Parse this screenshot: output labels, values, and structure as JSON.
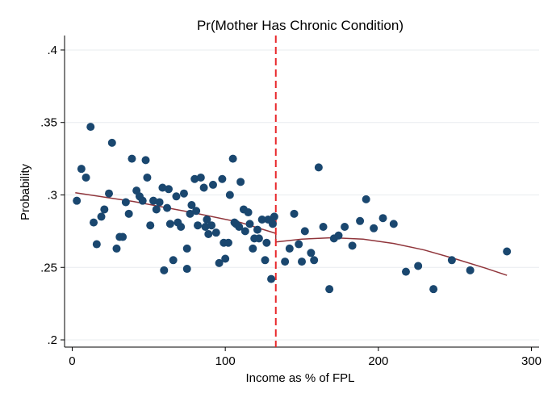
{
  "chart_data": {
    "type": "scatter",
    "title": "Pr(Mother Has Chronic Condition)",
    "xlabel": "Income as % of FPL",
    "ylabel": "Probability",
    "xlim": [
      -5,
      305
    ],
    "ylim": [
      0.195,
      0.41
    ],
    "x_ticks": [
      0,
      100,
      200,
      300
    ],
    "x_tick_labels": [
      "0",
      "100",
      "200",
      "300"
    ],
    "y_ticks": [
      0.2,
      0.25,
      0.3,
      0.35,
      0.4
    ],
    "y_tick_labels": [
      ".2",
      ".25",
      ".3",
      ".35",
      ".4"
    ],
    "grid": true,
    "cutoff": 133,
    "marker_color": "#1a476f",
    "fit_color": "#90353b",
    "cutoff_color": "#e8282b",
    "points": [
      [
        3,
        0.296
      ],
      [
        6,
        0.318
      ],
      [
        9,
        0.312
      ],
      [
        12,
        0.347
      ],
      [
        14,
        0.281
      ],
      [
        16,
        0.266
      ],
      [
        19,
        0.285
      ],
      [
        21,
        0.29
      ],
      [
        24,
        0.301
      ],
      [
        26,
        0.336
      ],
      [
        29,
        0.263
      ],
      [
        31,
        0.271
      ],
      [
        33,
        0.271
      ],
      [
        35,
        0.295
      ],
      [
        37,
        0.287
      ],
      [
        39,
        0.325
      ],
      [
        42,
        0.303
      ],
      [
        44,
        0.299
      ],
      [
        46,
        0.296
      ],
      [
        48,
        0.324
      ],
      [
        49,
        0.312
      ],
      [
        51,
        0.279
      ],
      [
        53,
        0.296
      ],
      [
        55,
        0.29
      ],
      [
        57,
        0.295
      ],
      [
        59,
        0.305
      ],
      [
        60,
        0.248
      ],
      [
        62,
        0.291
      ],
      [
        63,
        0.304
      ],
      [
        64,
        0.28
      ],
      [
        66,
        0.255
      ],
      [
        68,
        0.299
      ],
      [
        69,
        0.281
      ],
      [
        71,
        0.278
      ],
      [
        73,
        0.301
      ],
      [
        75,
        0.263
      ],
      [
        75,
        0.249
      ],
      [
        77,
        0.287
      ],
      [
        78,
        0.293
      ],
      [
        80,
        0.311
      ],
      [
        81,
        0.289
      ],
      [
        82,
        0.279
      ],
      [
        84,
        0.312
      ],
      [
        86,
        0.305
      ],
      [
        87,
        0.278
      ],
      [
        88,
        0.283
      ],
      [
        89,
        0.273
      ],
      [
        91,
        0.279
      ],
      [
        92,
        0.307
      ],
      [
        94,
        0.274
      ],
      [
        96,
        0.253
      ],
      [
        98,
        0.311
      ],
      [
        99,
        0.267
      ],
      [
        100,
        0.256
      ],
      [
        102,
        0.267
      ],
      [
        103,
        0.3
      ],
      [
        105,
        0.325
      ],
      [
        106,
        0.281
      ],
      [
        107,
        0.28
      ],
      [
        109,
        0.278
      ],
      [
        110,
        0.309
      ],
      [
        112,
        0.29
      ],
      [
        113,
        0.275
      ],
      [
        115,
        0.288
      ],
      [
        116,
        0.28
      ],
      [
        118,
        0.263
      ],
      [
        119,
        0.27
      ],
      [
        121,
        0.276
      ],
      [
        122,
        0.27
      ],
      [
        124,
        0.283
      ],
      [
        126,
        0.255
      ],
      [
        127,
        0.267
      ],
      [
        128,
        0.283
      ],
      [
        130,
        0.242
      ],
      [
        131,
        0.28
      ],
      [
        132,
        0.285
      ],
      [
        139,
        0.254
      ],
      [
        142,
        0.263
      ],
      [
        145,
        0.287
      ],
      [
        148,
        0.266
      ],
      [
        150,
        0.254
      ],
      [
        152,
        0.275
      ],
      [
        156,
        0.26
      ],
      [
        158,
        0.255
      ],
      [
        161,
        0.319
      ],
      [
        164,
        0.278
      ],
      [
        168,
        0.235
      ],
      [
        171,
        0.27
      ],
      [
        174,
        0.272
      ],
      [
        178,
        0.278
      ],
      [
        183,
        0.265
      ],
      [
        188,
        0.282
      ],
      [
        192,
        0.297
      ],
      [
        197,
        0.277
      ],
      [
        203,
        0.284
      ],
      [
        210,
        0.28
      ],
      [
        218,
        0.247
      ],
      [
        226,
        0.251
      ],
      [
        236,
        0.235
      ],
      [
        248,
        0.255
      ],
      [
        260,
        0.248
      ],
      [
        284,
        0.261
      ]
    ],
    "fit_left": [
      [
        2,
        0.3015
      ],
      [
        40,
        0.2955
      ],
      [
        80,
        0.2875
      ],
      [
        110,
        0.281
      ],
      [
        133,
        0.2735
      ]
    ],
    "fit_right": [
      [
        133,
        0.2675
      ],
      [
        150,
        0.2695
      ],
      [
        170,
        0.2705
      ],
      [
        190,
        0.2695
      ],
      [
        210,
        0.2665
      ],
      [
        230,
        0.262
      ],
      [
        250,
        0.256
      ],
      [
        270,
        0.2495
      ],
      [
        284,
        0.2445
      ]
    ]
  }
}
